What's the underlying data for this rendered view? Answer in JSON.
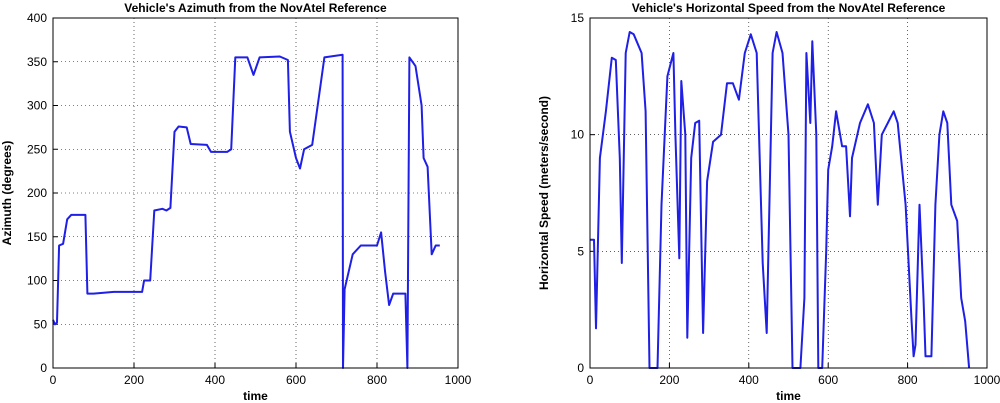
{
  "chart_data": [
    {
      "type": "line",
      "title": "Vehicle's Azimuth from the NovAtel Reference",
      "x_label": "time",
      "y_label": "Azimuth (degrees)",
      "color": "#1f1fe6",
      "xlim": [
        0,
        1000
      ],
      "xticks": [
        0,
        200,
        400,
        600,
        800,
        1000
      ],
      "ylim": [
        0,
        400
      ],
      "yticks": [
        0,
        50,
        100,
        150,
        200,
        250,
        300,
        350,
        400
      ],
      "grid": true,
      "x": [
        0,
        5,
        10,
        15,
        25,
        35,
        45,
        80,
        85,
        100,
        150,
        220,
        225,
        240,
        250,
        270,
        280,
        290,
        300,
        310,
        330,
        340,
        380,
        390,
        430,
        440,
        450,
        480,
        495,
        510,
        560,
        580,
        585,
        600,
        610,
        620,
        640,
        670,
        700,
        715,
        716,
        720,
        740,
        760,
        800,
        810,
        820,
        830,
        840,
        870,
        875,
        880,
        895,
        910,
        915,
        925,
        935,
        945,
        955
      ],
      "values": [
        55,
        50,
        52,
        140,
        142,
        170,
        175,
        175,
        85,
        85,
        87,
        87,
        100,
        100,
        180,
        182,
        180,
        183,
        270,
        276,
        275,
        256,
        255,
        247,
        247,
        250,
        355,
        355,
        335,
        355,
        356,
        352,
        270,
        240,
        228,
        250,
        255,
        355,
        357,
        358,
        0,
        90,
        130,
        140,
        140,
        155,
        110,
        72,
        85,
        85,
        0,
        355,
        345,
        300,
        240,
        230,
        130,
        140,
        140
      ]
    },
    {
      "type": "line",
      "title": "Vehicle's Horizontal Speed from the NovAtel Reference",
      "x_label": "time",
      "y_label": "Horizontal Speed (meters/second)",
      "color": "#1f1fe6",
      "xlim": [
        0,
        1000
      ],
      "xticks": [
        0,
        200,
        400,
        600,
        800,
        1000
      ],
      "ylim": [
        0,
        15
      ],
      "yticks": [
        0,
        5,
        10,
        15
      ],
      "grid": true,
      "x": [
        0,
        10,
        15,
        25,
        40,
        55,
        65,
        75,
        80,
        90,
        100,
        110,
        130,
        140,
        150,
        170,
        180,
        195,
        210,
        215,
        225,
        230,
        240,
        245,
        255,
        265,
        275,
        285,
        295,
        310,
        330,
        345,
        360,
        375,
        390,
        405,
        420,
        435,
        445,
        460,
        470,
        485,
        500,
        510,
        530,
        540,
        545,
        555,
        560,
        570,
        575,
        585,
        595,
        600,
        610,
        620,
        635,
        645,
        655,
        660,
        680,
        700,
        715,
        725,
        735,
        750,
        765,
        775,
        795,
        810,
        815,
        820,
        830,
        840,
        845,
        860,
        870,
        880,
        890,
        900,
        910,
        925,
        935,
        945,
        955
      ],
      "values": [
        5.5,
        5.5,
        1.7,
        9,
        11,
        13.3,
        13.2,
        9,
        4.5,
        13.5,
        14.4,
        14.3,
        13.5,
        11,
        0,
        0,
        7,
        12.5,
        13.5,
        10,
        4.7,
        12.3,
        10,
        1.3,
        9,
        10.5,
        10.6,
        1.5,
        8,
        9.7,
        10,
        12.2,
        12.2,
        11.5,
        13.5,
        14.3,
        13.5,
        4.5,
        1.5,
        13.5,
        14.4,
        13.5,
        10,
        0,
        0,
        3,
        13.5,
        10.5,
        14,
        10,
        0,
        0,
        5,
        8.5,
        9.5,
        11,
        9.5,
        9.5,
        6.5,
        9,
        10.5,
        11.3,
        10.5,
        7,
        10,
        10.5,
        11,
        10.5,
        7,
        2,
        0.5,
        1,
        7,
        3,
        0.5,
        0.5,
        7,
        10,
        11,
        10.5,
        7,
        6.3,
        3,
        2,
        0
      ]
    }
  ]
}
